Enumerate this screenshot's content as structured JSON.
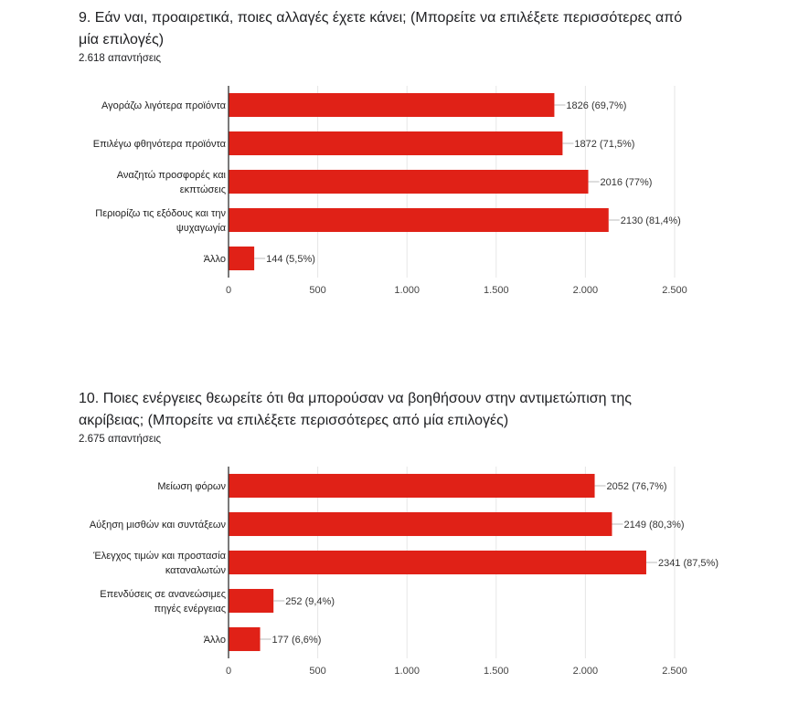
{
  "questions": [
    {
      "title_line1": "9. Εάν ναι, προαιρετικά, ποιες αλλαγές έχετε κάνει; (Μπορείτε να επιλέξετε περισσότερες από",
      "title_line2": "μία επιλογές)",
      "responses": "2.618 απαντήσεις"
    },
    {
      "title_line1": "10. Ποιες ενέργειες θεωρείτε ότι θα μπορούσαν να βοηθήσουν στην αντιμετώπιση της",
      "title_line2": "ακρίβειας; (Μπορείτε να επιλέξετε περισσότερες από μία επιλογές)",
      "responses": "2.675 απαντήσεις"
    }
  ],
  "chart_data": [
    {
      "type": "bar",
      "orientation": "horizontal",
      "categories": [
        [
          "Αγοράζω λιγότερα προϊόντα"
        ],
        [
          "Επιλέγω φθηνότερα προϊόντα"
        ],
        [
          "Αναζητώ προσφορές και",
          "εκπτώσεις"
        ],
        [
          "Περιορίζω τις εξόδους και την",
          "ψυχαγωγία"
        ],
        [
          "Άλλο"
        ]
      ],
      "values": [
        1826,
        1872,
        2016,
        2130,
        144
      ],
      "data_labels": [
        "1826 (69,7%)",
        "1872 (71,5%)",
        "2016 (77%)",
        "2130 (81,4%)",
        "144 (5,5%)"
      ],
      "xlim": [
        0,
        2500
      ],
      "ticks": [
        0,
        500,
        1000,
        1500,
        2000,
        2500
      ],
      "tick_labels": [
        "0",
        "500",
        "1.000",
        "1.500",
        "2.000",
        "2.500"
      ],
      "grid": true,
      "color": "#e02117"
    },
    {
      "type": "bar",
      "orientation": "horizontal",
      "categories": [
        [
          "Μείωση φόρων"
        ],
        [
          "Αύξηση μισθών και συντάξεων"
        ],
        [
          "Έλεγχος τιμών και προστασία",
          "καταναλωτών"
        ],
        [
          "Επενδύσεις σε ανανεώσιμες",
          "πηγές ενέργειας"
        ],
        [
          "Άλλο"
        ]
      ],
      "values": [
        2052,
        2149,
        2341,
        252,
        177
      ],
      "data_labels": [
        "2052 (76,7%)",
        "2149 (80,3%)",
        "2341 (87,5%)",
        "252 (9,4%)",
        "177 (6,6%)"
      ],
      "xlim": [
        0,
        2500
      ],
      "ticks": [
        0,
        500,
        1000,
        1500,
        2000,
        2500
      ],
      "tick_labels": [
        "0",
        "500",
        "1.000",
        "1.500",
        "2.000",
        "2.500"
      ],
      "grid": true,
      "color": "#e02117"
    }
  ]
}
